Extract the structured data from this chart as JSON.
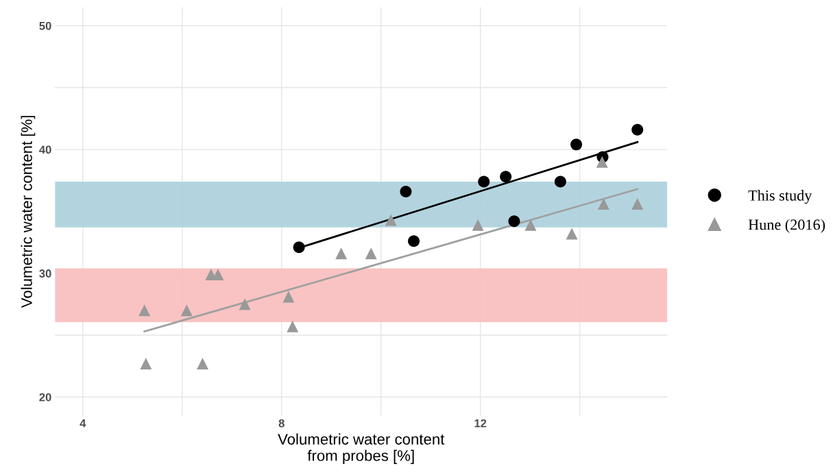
{
  "chart_data": {
    "type": "scatter",
    "xlabel": "Volumetric water content\nfrom probes [%]",
    "ylabel": "Volumetric water content [%]",
    "xlim": [
      3.44,
      15.76
    ],
    "ylim": [
      18.5,
      51.5
    ],
    "xticks": [
      4,
      {
        "value": 6,
        "label": null
      },
      8,
      {
        "value": 10,
        "label": null
      },
      12,
      {
        "value": 14,
        "label": null
      }
    ],
    "yticks": [
      20,
      {
        "value": 25,
        "label": null
      },
      30,
      {
        "value": 35,
        "label": null
      },
      40,
      {
        "value": 45,
        "label": null
      },
      50
    ],
    "grid": true,
    "legend": "right",
    "bands": [
      {
        "axis": "y",
        "from": 33.7,
        "to": 37.4,
        "color": "#abcfdc"
      },
      {
        "axis": "y",
        "from": 26.05,
        "to": 30.4,
        "color": "#f8bcbc"
      }
    ],
    "series": [
      {
        "name": "This study",
        "marker": "circle",
        "color": "#000000",
        "x": [
          8.35,
          10.5,
          10.66,
          12.07,
          12.51,
          12.68,
          13.61,
          13.93,
          14.46,
          15.16
        ],
        "values": [
          32.1,
          36.6,
          32.6,
          37.4,
          37.8,
          34.2,
          37.4,
          40.4,
          39.4,
          41.6
        ]
      },
      {
        "name": "Hune (2016)",
        "marker": "triangle",
        "color": "#999999",
        "x": [
          5.24,
          5.27,
          6.09,
          6.41,
          6.58,
          6.72,
          7.26,
          8.14,
          8.22,
          9.2,
          9.8,
          10.2,
          11.95,
          13.01,
          13.84,
          14.45,
          14.48,
          15.16
        ],
        "values": [
          27.0,
          22.7,
          27.0,
          22.7,
          29.9,
          29.9,
          27.5,
          28.1,
          25.7,
          31.6,
          31.6,
          34.3,
          33.9,
          33.9,
          33.2,
          39.0,
          35.6,
          35.6
        ]
      },
      {
        "type": "line",
        "color": "#000000",
        "x": [
          8.35,
          15.16
        ],
        "values": [
          32.05,
          40.6
        ]
      },
      {
        "type": "line",
        "color": "#a0a0a0",
        "x": [
          5.24,
          15.16
        ],
        "values": [
          25.3,
          36.8
        ]
      }
    ]
  }
}
